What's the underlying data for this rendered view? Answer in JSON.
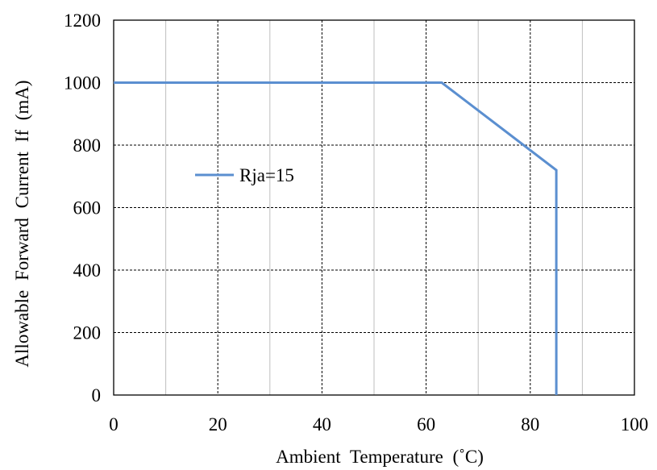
{
  "chart_data": {
    "type": "line",
    "title": "",
    "xlabel": "Ambient Temperature (˚C)",
    "ylabel": "Allowable Forward Current If (mA)",
    "xlim": [
      0,
      100
    ],
    "ylim": [
      0,
      1200
    ],
    "x_ticks": [
      "0",
      "20",
      "40",
      "60",
      "80",
      "100"
    ],
    "y_ticks": [
      "0",
      "200",
      "400",
      "600",
      "800",
      "1000",
      "1200"
    ],
    "x_major_step": 20,
    "x_minor_step": 10,
    "y_major_step": 200,
    "grid": true,
    "legend_position": "center-left",
    "series": [
      {
        "name": "Rja=15",
        "color": "#5b8fd0",
        "points": [
          {
            "x": 0,
            "y": 1000
          },
          {
            "x": 63,
            "y": 1000
          },
          {
            "x": 85,
            "y": 720
          },
          {
            "x": 85,
            "y": 0
          }
        ]
      }
    ]
  }
}
